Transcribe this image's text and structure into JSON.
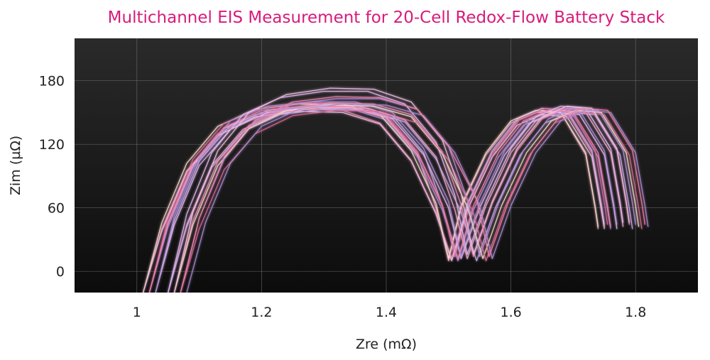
{
  "title": "Multichannel EIS Measurement for 20-Cell Redox-Flow Battery Stack",
  "colors": {
    "title": "#d81b7a",
    "plot_background_top": "#2a2a2a",
    "plot_background_bottom": "#0c0c0c",
    "grid": "#7a7a7a",
    "series_palette": [
      "#f2a6c8",
      "#e88bb4",
      "#c9a8e8",
      "#b48fd9",
      "#f5d9c6",
      "#e2b6f0",
      "#d66a97",
      "#f0bfe0",
      "#a88bd1",
      "#ee7fa6"
    ]
  },
  "chart_data": {
    "type": "line",
    "title": "Multichannel EIS Measurement for 20-Cell Redox-Flow Battery Stack",
    "xlabel": "Zre (mΩ)",
    "ylabel": "Zim (µΩ)",
    "xlim": [
      0.9,
      1.9
    ],
    "ylim": [
      -20,
      220
    ],
    "xticks": [
      1,
      1.2,
      1.4,
      1.6,
      1.8
    ],
    "xtick_labels": [
      "1",
      "1.2",
      "1.4",
      "1.6",
      "1.8"
    ],
    "yticks": [
      0,
      60,
      120,
      180
    ],
    "ytick_labels": [
      "0",
      "60",
      "120",
      "180"
    ],
    "grid": true,
    "legend": "none",
    "series": [
      {
        "x": [
          1.02,
          1.05,
          1.09,
          1.14,
          1.2,
          1.27,
          1.34,
          1.4,
          1.45,
          1.48,
          1.5,
          1.52,
          1.56,
          1.6,
          1.64,
          1.68,
          1.72,
          1.735,
          1.74
        ],
        "y": [
          -20,
          45,
          100,
          135,
          150,
          155,
          155,
          145,
          110,
          60,
          10,
          60,
          110,
          140,
          150,
          150,
          110,
          60,
          40
        ]
      },
      {
        "x": [
          1.01,
          1.04,
          1.08,
          1.13,
          1.19,
          1.26,
          1.33,
          1.39,
          1.44,
          1.48,
          1.505,
          1.53,
          1.57,
          1.61,
          1.65,
          1.69,
          1.73,
          1.745,
          1.75
        ],
        "y": [
          -20,
          40,
          95,
          130,
          148,
          153,
          152,
          140,
          105,
          55,
          12,
          62,
          112,
          142,
          152,
          150,
          112,
          62,
          42
        ]
      },
      {
        "x": [
          1.03,
          1.06,
          1.1,
          1.15,
          1.21,
          1.28,
          1.35,
          1.41,
          1.46,
          1.49,
          1.51,
          1.53,
          1.57,
          1.61,
          1.65,
          1.69,
          1.73,
          1.745,
          1.75
        ],
        "y": [
          -20,
          48,
          104,
          138,
          152,
          157,
          157,
          147,
          112,
          62,
          14,
          64,
          114,
          144,
          154,
          152,
          114,
          64,
          44
        ]
      },
      {
        "x": [
          1.02,
          1.05,
          1.09,
          1.14,
          1.2,
          1.27,
          1.34,
          1.4,
          1.45,
          1.49,
          1.515,
          1.54,
          1.58,
          1.62,
          1.66,
          1.7,
          1.74,
          1.755,
          1.76
        ],
        "y": [
          -20,
          42,
          98,
          133,
          150,
          155,
          154,
          143,
          108,
          58,
          10,
          58,
          108,
          138,
          148,
          148,
          108,
          58,
          40
        ]
      },
      {
        "x": [
          1.01,
          1.04,
          1.08,
          1.13,
          1.19,
          1.26,
          1.33,
          1.39,
          1.44,
          1.48,
          1.5,
          1.52,
          1.56,
          1.6,
          1.64,
          1.68,
          1.72,
          1.735,
          1.74
        ],
        "y": [
          -20,
          46,
          102,
          137,
          153,
          158,
          158,
          148,
          114,
          64,
          12,
          62,
          112,
          142,
          152,
          150,
          112,
          62,
          42
        ]
      },
      {
        "x": [
          1.03,
          1.06,
          1.1,
          1.15,
          1.21,
          1.28,
          1.35,
          1.41,
          1.46,
          1.5,
          1.52,
          1.55,
          1.59,
          1.63,
          1.67,
          1.71,
          1.75,
          1.765,
          1.77
        ],
        "y": [
          -20,
          44,
          100,
          134,
          150,
          154,
          154,
          144,
          110,
          60,
          12,
          60,
          110,
          140,
          150,
          148,
          110,
          60,
          40
        ]
      },
      {
        "x": [
          1.02,
          1.05,
          1.09,
          1.14,
          1.2,
          1.27,
          1.34,
          1.4,
          1.45,
          1.49,
          1.51,
          1.535,
          1.575,
          1.615,
          1.655,
          1.695,
          1.735,
          1.75,
          1.755
        ],
        "y": [
          -20,
          50,
          106,
          140,
          154,
          159,
          158,
          148,
          113,
          63,
          14,
          64,
          114,
          144,
          154,
          152,
          114,
          64,
          44
        ]
      },
      {
        "x": [
          1.01,
          1.04,
          1.08,
          1.13,
          1.19,
          1.26,
          1.33,
          1.39,
          1.44,
          1.48,
          1.505,
          1.53,
          1.57,
          1.61,
          1.65,
          1.69,
          1.73,
          1.745,
          1.75
        ],
        "y": [
          -20,
          38,
          94,
          128,
          146,
          151,
          150,
          139,
          104,
          54,
          10,
          58,
          108,
          138,
          148,
          146,
          108,
          58,
          40
        ]
      },
      {
        "x": [
          1.03,
          1.06,
          1.1,
          1.15,
          1.21,
          1.28,
          1.35,
          1.41,
          1.46,
          1.5,
          1.52,
          1.55,
          1.59,
          1.63,
          1.67,
          1.71,
          1.75,
          1.765,
          1.77
        ],
        "y": [
          -20,
          52,
          108,
          142,
          156,
          160,
          160,
          150,
          116,
          66,
          14,
          64,
          114,
          144,
          154,
          152,
          114,
          64,
          44
        ]
      },
      {
        "x": [
          1.02,
          1.05,
          1.09,
          1.14,
          1.2,
          1.27,
          1.34,
          1.4,
          1.45,
          1.49,
          1.515,
          1.54,
          1.58,
          1.62,
          1.66,
          1.7,
          1.74,
          1.755,
          1.76
        ],
        "y": [
          -20,
          46,
          102,
          136,
          152,
          156,
          156,
          146,
          112,
          62,
          12,
          62,
          112,
          142,
          152,
          150,
          112,
          62,
          42
        ]
      },
      {
        "x": [
          1.05,
          1.08,
          1.12,
          1.17,
          1.23,
          1.3,
          1.37,
          1.43,
          1.48,
          1.51,
          1.53,
          1.56,
          1.6,
          1.64,
          1.68,
          1.72,
          1.76,
          1.775,
          1.78
        ],
        "y": [
          -20,
          44,
          100,
          134,
          150,
          155,
          154,
          143,
          108,
          58,
          12,
          62,
          112,
          142,
          152,
          150,
          112,
          62,
          42
        ]
      },
      {
        "x": [
          1.06,
          1.09,
          1.13,
          1.18,
          1.24,
          1.31,
          1.38,
          1.44,
          1.49,
          1.52,
          1.54,
          1.57,
          1.61,
          1.65,
          1.69,
          1.73,
          1.77,
          1.785,
          1.79
        ],
        "y": [
          -20,
          48,
          104,
          138,
          154,
          159,
          158,
          148,
          113,
          63,
          14,
          64,
          114,
          144,
          154,
          152,
          114,
          64,
          44
        ]
      },
      {
        "x": [
          1.05,
          1.08,
          1.12,
          1.17,
          1.23,
          1.3,
          1.37,
          1.43,
          1.48,
          1.52,
          1.545,
          1.575,
          1.615,
          1.655,
          1.695,
          1.735,
          1.775,
          1.79,
          1.795
        ],
        "y": [
          -20,
          42,
          98,
          132,
          148,
          153,
          152,
          141,
          106,
          56,
          10,
          60,
          110,
          140,
          150,
          148,
          110,
          60,
          40
        ]
      },
      {
        "x": [
          1.07,
          1.1,
          1.14,
          1.19,
          1.25,
          1.32,
          1.39,
          1.45,
          1.5,
          1.53,
          1.55,
          1.58,
          1.62,
          1.66,
          1.7,
          1.74,
          1.78,
          1.795,
          1.8
        ],
        "y": [
          -20,
          50,
          106,
          142,
          158,
          163,
          163,
          153,
          118,
          68,
          14,
          64,
          114,
          144,
          154,
          152,
          114,
          64,
          44
        ]
      },
      {
        "x": [
          1.06,
          1.09,
          1.13,
          1.18,
          1.24,
          1.31,
          1.38,
          1.44,
          1.49,
          1.53,
          1.555,
          1.585,
          1.625,
          1.665,
          1.705,
          1.745,
          1.785,
          1.8,
          1.805
        ],
        "y": [
          -20,
          44,
          100,
          135,
          152,
          157,
          156,
          146,
          111,
          61,
          12,
          62,
          112,
          142,
          152,
          150,
          112,
          62,
          42
        ]
      },
      {
        "x": [
          1.05,
          1.08,
          1.12,
          1.17,
          1.23,
          1.3,
          1.37,
          1.43,
          1.48,
          1.51,
          1.53,
          1.56,
          1.6,
          1.64,
          1.68,
          1.72,
          1.76,
          1.775,
          1.78
        ],
        "y": [
          -20,
          54,
          112,
          148,
          164,
          170,
          170,
          158,
          122,
          72,
          16,
          66,
          116,
          146,
          156,
          154,
          116,
          66,
          46
        ]
      },
      {
        "x": [
          1.07,
          1.1,
          1.14,
          1.19,
          1.25,
          1.32,
          1.39,
          1.45,
          1.5,
          1.54,
          1.56,
          1.59,
          1.63,
          1.67,
          1.71,
          1.75,
          1.79,
          1.805,
          1.81
        ],
        "y": [
          -20,
          40,
          96,
          130,
          147,
          152,
          151,
          140,
          105,
          55,
          10,
          60,
          110,
          140,
          150,
          148,
          110,
          60,
          40
        ]
      },
      {
        "x": [
          1.06,
          1.09,
          1.13,
          1.18,
          1.24,
          1.31,
          1.38,
          1.44,
          1.49,
          1.52,
          1.54,
          1.57,
          1.61,
          1.65,
          1.69,
          1.73,
          1.77,
          1.785,
          1.79
        ],
        "y": [
          -20,
          56,
          114,
          150,
          167,
          173,
          172,
          160,
          124,
          74,
          16,
          66,
          116,
          146,
          156,
          154,
          116,
          66,
          46
        ]
      },
      {
        "x": [
          1.08,
          1.11,
          1.15,
          1.2,
          1.26,
          1.33,
          1.4,
          1.46,
          1.51,
          1.55,
          1.57,
          1.6,
          1.64,
          1.68,
          1.72,
          1.76,
          1.8,
          1.815,
          1.82
        ],
        "y": [
          -20,
          46,
          102,
          137,
          153,
          158,
          157,
          147,
          112,
          62,
          12,
          62,
          112,
          142,
          152,
          150,
          112,
          62,
          42
        ]
      },
      {
        "x": [
          1.07,
          1.1,
          1.14,
          1.19,
          1.25,
          1.32,
          1.39,
          1.45,
          1.5,
          1.545,
          1.565,
          1.595,
          1.635,
          1.675,
          1.715,
          1.755,
          1.795,
          1.81,
          1.815
        ],
        "y": [
          -20,
          50,
          108,
          143,
          160,
          165,
          164,
          153,
          118,
          68,
          14,
          64,
          114,
          144,
          154,
          152,
          114,
          64,
          44
        ]
      }
    ]
  }
}
